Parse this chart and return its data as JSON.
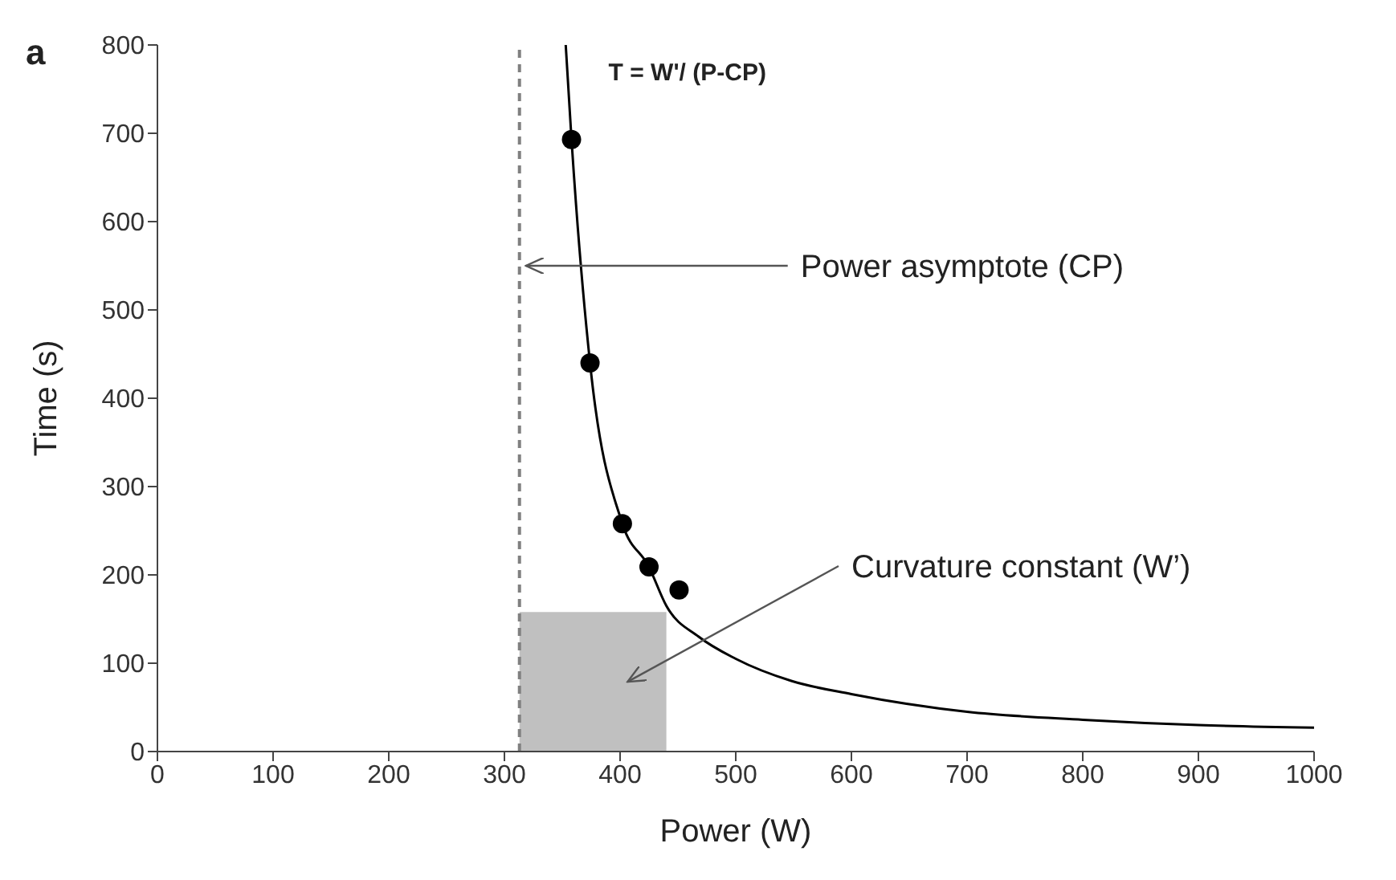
{
  "chart_data": {
    "type": "line",
    "title": "T = W'/ (P-CP)",
    "xlabel": "Power (W)",
    "ylabel": "Time (s)",
    "xlim": [
      0,
      1000
    ],
    "xticks": [
      0,
      100,
      200,
      300,
      400,
      500,
      600,
      700,
      800,
      900,
      1000
    ],
    "ylim": [
      0,
      800
    ],
    "yticks": [
      0,
      100,
      200,
      300,
      400,
      500,
      600,
      700,
      800
    ],
    "grid": false,
    "series": [
      {
        "type": "area",
        "color": "#c0c0c0",
        "x": [
          313,
          440
        ],
        "values": [
          158,
          158
        ]
      },
      {
        "color": "#000000",
        "marker": "none",
        "x": [
          353,
          358,
          374,
          402,
          425,
          440,
          468,
          500,
          548,
          600,
          700,
          800,
          900,
          1000
        ],
        "values": [
          800,
          693,
          440,
          258,
          209,
          165,
          130,
          105,
          80,
          65,
          45,
          36,
          30,
          27
        ]
      },
      {
        "type": "scatter",
        "color": "#000000",
        "marker": "circle",
        "x": [
          358,
          374,
          402,
          425,
          451
        ],
        "values": [
          693,
          440,
          258,
          209,
          183
        ]
      }
    ],
    "ref_lines": [
      {
        "axis": "x",
        "value": 313,
        "color": "#808080",
        "line_style": "dashed"
      }
    ],
    "annotations": [
      "a",
      {
        "text": "Power asymptote (CP)",
        "x": 313,
        "y": 550
      },
      "Curvature constant (W’)"
    ]
  }
}
